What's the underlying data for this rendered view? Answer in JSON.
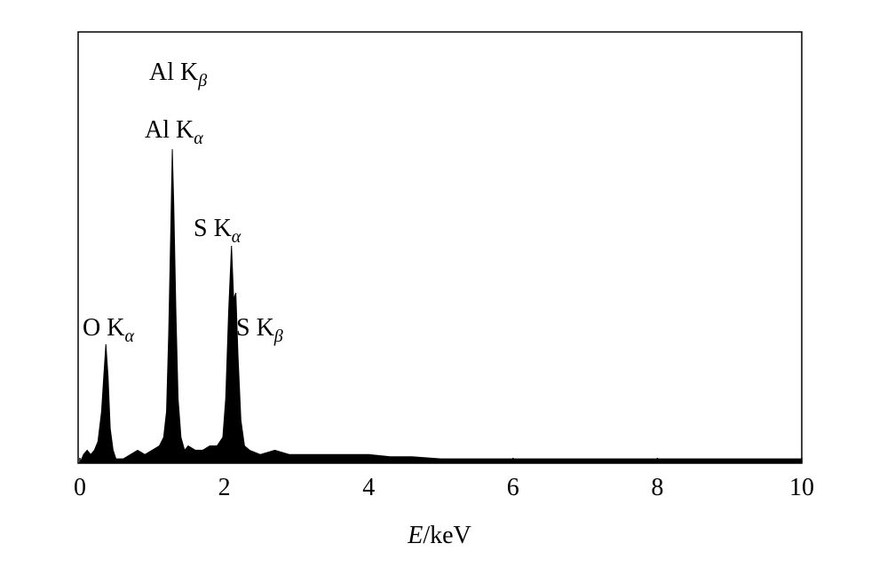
{
  "chart_data": {
    "type": "area",
    "xlabel": {
      "symbol": "E",
      "unit": "/keV"
    },
    "xlim": [
      0,
      10
    ],
    "xticks": [
      0,
      2,
      4,
      6,
      8,
      10
    ],
    "ylim": [
      0,
      100
    ],
    "color": "#000000",
    "series": [
      {
        "x": [
          0,
          0.05,
          0.1,
          0.15,
          0.2,
          0.25,
          0.3,
          0.33,
          0.36,
          0.39,
          0.42,
          0.46,
          0.5,
          0.6,
          0.7,
          0.8,
          0.9,
          1.0,
          1.1,
          1.16,
          1.2,
          1.23,
          1.26,
          1.28,
          1.3,
          1.33,
          1.36,
          1.4,
          1.45,
          1.5,
          1.6,
          1.7,
          1.8,
          1.9,
          1.98,
          2.02,
          2.06,
          2.1,
          2.13,
          2.16,
          2.19,
          2.23,
          2.28,
          2.35,
          2.5,
          2.7,
          2.9,
          3.1,
          3.3,
          3.5,
          3.8,
          4.0,
          4.3,
          4.6,
          5,
          5.5,
          6,
          6.5,
          7,
          7.5,
          8,
          8.5,
          9,
          9.5,
          10
        ],
        "values": [
          0,
          2,
          3,
          2,
          3,
          5,
          12,
          20,
          27.6,
          20,
          8,
          3,
          1,
          1,
          2,
          3,
          2,
          3,
          4,
          6,
          12,
          30,
          55,
          72.8,
          60,
          35,
          15,
          6,
          3,
          4,
          3,
          3,
          4,
          4,
          6,
          15,
          35,
          50.4,
          38,
          39.5,
          25,
          10,
          4,
          3,
          2,
          3,
          2,
          2,
          2,
          2,
          2,
          2,
          1.5,
          1.5,
          1,
          1,
          1,
          1,
          1,
          1,
          1,
          1,
          1,
          1,
          1
        ]
      }
    ],
    "annotations": [
      {
        "line": "Al K",
        "sub": "β"
      },
      {
        "line": "Al K",
        "sub": "α"
      },
      {
        "line": "S K",
        "sub": "α"
      },
      {
        "line": "O K",
        "sub": "α"
      },
      {
        "line": "S K",
        "sub": "β"
      }
    ]
  }
}
